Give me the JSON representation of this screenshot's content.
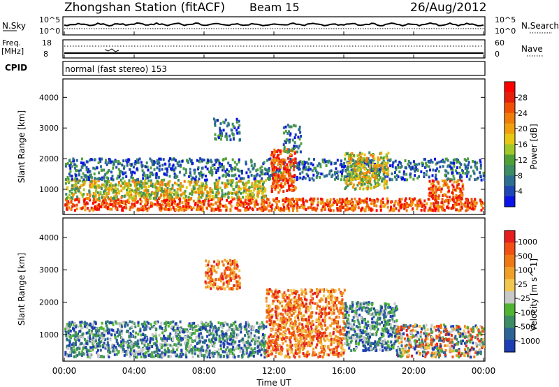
{
  "header": {
    "station": "Zhongshan Station (fitACF)",
    "beam": "Beam 15",
    "date": "26/Aug/2012"
  },
  "top_panels": {
    "nsky_label": "N.Sky",
    "nsky_ticks": [
      "10^5",
      "10^0"
    ],
    "nsearch_label": "N.Search",
    "nsearch_ticks": [
      "10^5",
      "10^0"
    ],
    "freq_label": "Freq.",
    "freq_unit": "[MHz]",
    "freq_ticks": [
      "18",
      "8"
    ],
    "nave_label": "Nave",
    "nave_ticks": [
      "60",
      "0"
    ],
    "cpid_label": "CPID",
    "cpid_text": "normal (fast stereo) 153"
  },
  "chart_data": [
    {
      "type": "heatmap",
      "title": "",
      "xlabel": "Time UT",
      "ylabel": "Slant Range [km]",
      "x_ticks": [
        "00:00",
        "04:00",
        "08:00",
        "12:00",
        "16:00",
        "20:00",
        "00:00"
      ],
      "x_range_hours": [
        0,
        24
      ],
      "y_ticks": [
        1000,
        2000,
        3000,
        4000
      ],
      "ylim": [
        180,
        4600
      ],
      "colorbar": {
        "label": "Power [dB]",
        "ticks": [
          "4",
          "8",
          "12",
          "16",
          "20",
          "24",
          "28"
        ],
        "colors": [
          "#0a14e6",
          "#1e46b4",
          "#2d6e91",
          "#3c8c64",
          "#50a038",
          "#a0c828",
          "#e6c814",
          "#f0a00f",
          "#f07d0a",
          "#f05005",
          "#e61e0a",
          "#ff0000"
        ]
      },
      "echo_regions": [
        {
          "t": [
            0.0,
            24.0
          ],
          "r": [
            300,
            700
          ],
          "level": "high"
        },
        {
          "t": [
            0.0,
            11.5
          ],
          "r": [
            700,
            1300
          ],
          "level": "mid"
        },
        {
          "t": [
            0.0,
            24.0
          ],
          "r": [
            1300,
            2000
          ],
          "level": "low"
        },
        {
          "t": [
            11.8,
            13.2
          ],
          "r": [
            900,
            2300
          ],
          "level": "high"
        },
        {
          "t": [
            20.8,
            22.8
          ],
          "r": [
            700,
            1300
          ],
          "level": "high"
        },
        {
          "t": [
            16.0,
            18.5
          ],
          "r": [
            1000,
            2200
          ],
          "level": "mid"
        },
        {
          "t": [
            8.5,
            10.0
          ],
          "r": [
            2600,
            3300
          ],
          "level": "low"
        },
        {
          "t": [
            12.5,
            13.5
          ],
          "r": [
            2200,
            3100
          ],
          "level": "low"
        }
      ]
    },
    {
      "type": "heatmap",
      "title": "",
      "xlabel": "Time UT",
      "ylabel": "Slant Range [km]",
      "x_ticks": [
        "00:00",
        "04:00",
        "08:00",
        "12:00",
        "16:00",
        "20:00",
        "00:00"
      ],
      "x_range_hours": [
        0,
        24
      ],
      "y_ticks": [
        1000,
        2000,
        3000,
        4000
      ],
      "ylim": [
        180,
        4600
      ],
      "colorbar": {
        "label": "Velocity [m s^-1]",
        "ticks": [
          "1000",
          "500",
          "100",
          "25",
          "-25",
          "-100",
          "-500",
          "-1000"
        ],
        "colors": [
          "#1e3cb4",
          "#2d6496",
          "#3c8c64",
          "#50b432",
          "#c8c8c8",
          "#f0c850",
          "#f0a028",
          "#f07814",
          "#f05014",
          "#e61e1e"
        ]
      },
      "echo_regions": [
        {
          "t": [
            0.0,
            11.5
          ],
          "r": [
            300,
            1400
          ],
          "level": "positive"
        },
        {
          "t": [
            11.5,
            16.0
          ],
          "r": [
            300,
            2400
          ],
          "level": "negative"
        },
        {
          "t": [
            16.0,
            19.0
          ],
          "r": [
            500,
            2000
          ],
          "level": "positive"
        },
        {
          "t": [
            19.0,
            24.0
          ],
          "r": [
            300,
            1300
          ],
          "level": "mixed"
        },
        {
          "t": [
            8.0,
            10.0
          ],
          "r": [
            2400,
            3300
          ],
          "level": "negative"
        }
      ]
    }
  ]
}
